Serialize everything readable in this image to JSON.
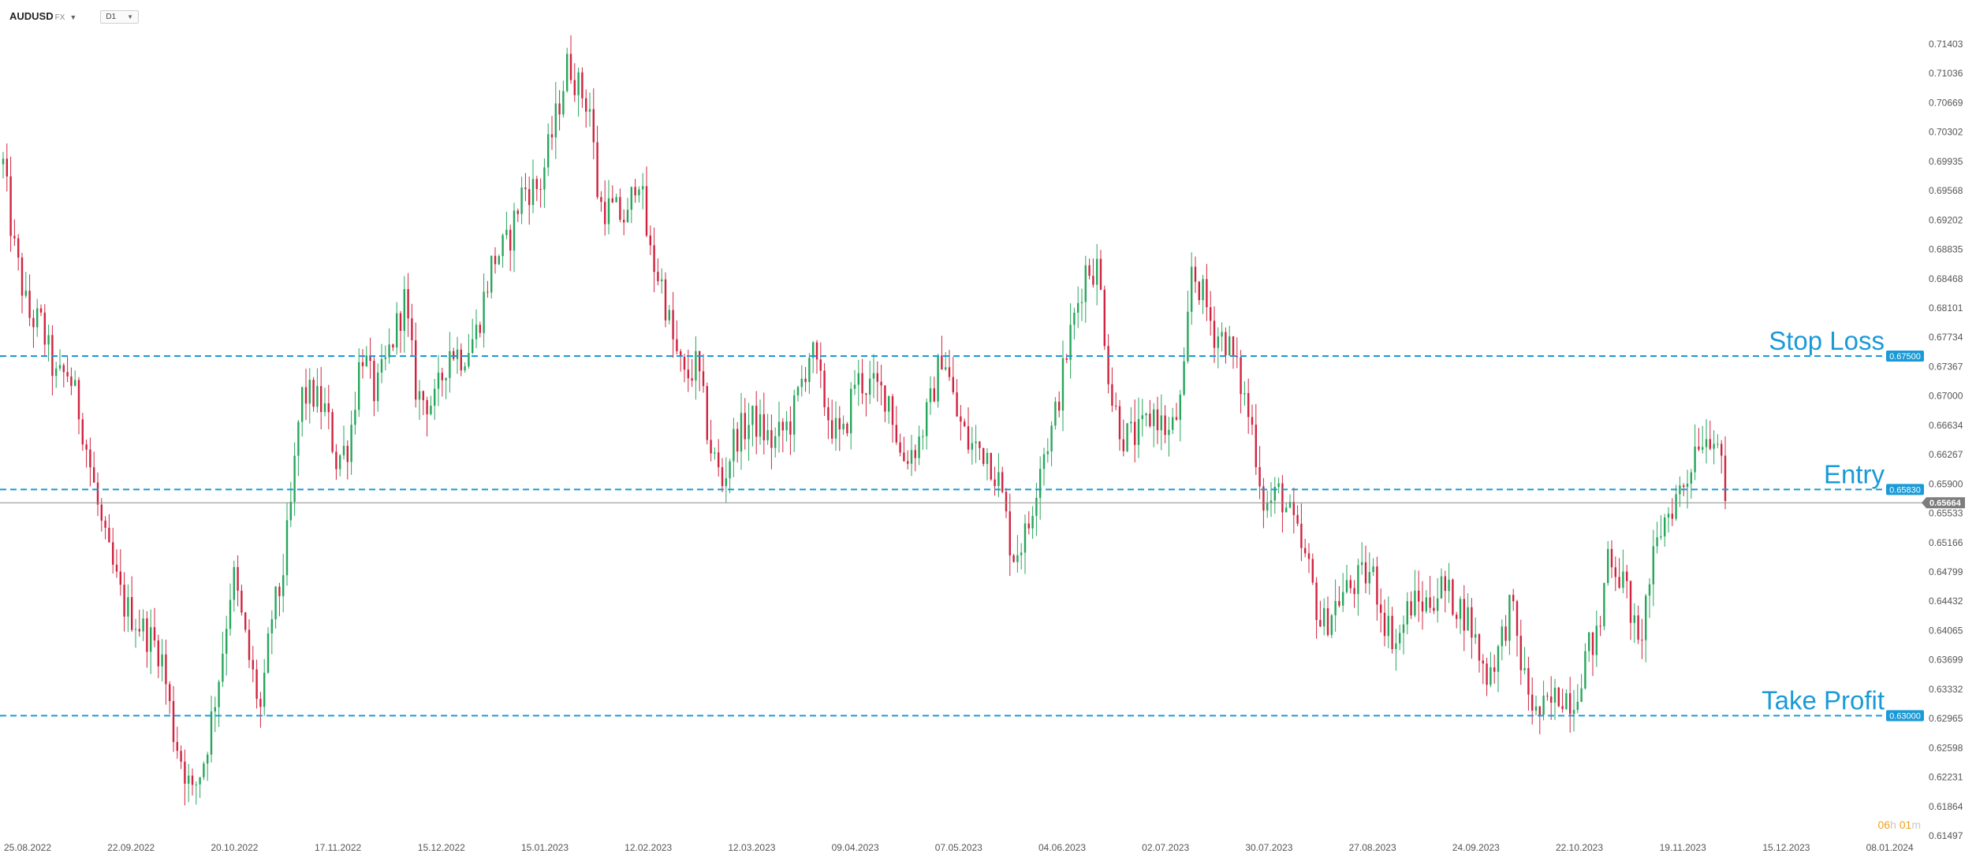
{
  "header": {
    "symbol": "AUDUSD",
    "symbol_suffix": "FX",
    "timeframe": "D1"
  },
  "countdown": {
    "hours": "06",
    "hours_unit": "h",
    "minutes": "01",
    "minutes_unit": "m"
  },
  "colors": {
    "up": "#26a65b",
    "down": "#d0233f",
    "level_line": "#1a9ad6",
    "current_price_bg": "#7d7d7d"
  },
  "chart_data": {
    "type": "candlestick",
    "title": "",
    "ylim": [
      0.615,
      0.7176
    ],
    "y_ticks": [
      "0.71403",
      "0.71036",
      "0.70669",
      "0.70302",
      "0.69935",
      "0.69568",
      "0.69202",
      "0.68835",
      "0.68468",
      "0.68101",
      "0.67734",
      "0.67367",
      "0.67000",
      "0.66634",
      "0.66267",
      "0.65900",
      "0.65533",
      "0.65166",
      "0.64799",
      "0.64432",
      "0.64065",
      "0.63699",
      "0.63332",
      "0.62965",
      "0.62598",
      "0.62231",
      "0.61864",
      "0.61497"
    ],
    "x_ticks": [
      "25.08.2022",
      "22.09.2022",
      "20.10.2022",
      "17.11.2022",
      "15.12.2022",
      "15.01.2023",
      "12.02.2023",
      "12.03.2023",
      "09.04.2023",
      "07.05.2023",
      "04.06.2023",
      "02.07.2023",
      "30.07.2023",
      "27.08.2023",
      "24.09.2023",
      "22.10.2023",
      "19.11.2023",
      "15.12.2023",
      "08.01.2024"
    ],
    "levels": [
      {
        "label": "Stop Loss",
        "price": "0.67500"
      },
      {
        "label": "Entry",
        "price": "0.65830"
      },
      {
        "label": "Take Profit",
        "price": "0.63000"
      }
    ],
    "current_price": "0.65664",
    "candles_anchors": [
      [
        0,
        0.699
      ],
      [
        8,
        0.689
      ],
      [
        20,
        0.68
      ],
      [
        30,
        0.679
      ],
      [
        42,
        0.672
      ],
      [
        52,
        0.673
      ],
      [
        62,
        0.667
      ],
      [
        80,
        0.652
      ],
      [
        95,
        0.644
      ],
      [
        110,
        0.641
      ],
      [
        125,
        0.638
      ],
      [
        135,
        0.628
      ],
      [
        150,
        0.62
      ],
      [
        160,
        0.625
      ],
      [
        172,
        0.636
      ],
      [
        182,
        0.648
      ],
      [
        195,
        0.637
      ],
      [
        205,
        0.63
      ],
      [
        212,
        0.642
      ],
      [
        220,
        0.646
      ],
      [
        228,
        0.656
      ],
      [
        236,
        0.67
      ],
      [
        246,
        0.67
      ],
      [
        256,
        0.668
      ],
      [
        264,
        0.662
      ],
      [
        274,
        0.664
      ],
      [
        284,
        0.676
      ],
      [
        295,
        0.67
      ],
      [
        305,
        0.675
      ],
      [
        318,
        0.682
      ],
      [
        328,
        0.67
      ],
      [
        342,
        0.669
      ],
      [
        354,
        0.676
      ],
      [
        364,
        0.675
      ],
      [
        375,
        0.678
      ],
      [
        388,
        0.687
      ],
      [
        400,
        0.689
      ],
      [
        412,
        0.696
      ],
      [
        425,
        0.696
      ],
      [
        437,
        0.704
      ],
      [
        448,
        0.712
      ],
      [
        455,
        0.709
      ],
      [
        465,
        0.706
      ],
      [
        472,
        0.694
      ],
      [
        485,
        0.693
      ],
      [
        495,
        0.692
      ],
      [
        503,
        0.699
      ],
      [
        512,
        0.688
      ],
      [
        522,
        0.684
      ],
      [
        532,
        0.676
      ],
      [
        540,
        0.672
      ],
      [
        550,
        0.674
      ],
      [
        560,
        0.664
      ],
      [
        570,
        0.659
      ],
      [
        580,
        0.665
      ],
      [
        595,
        0.667
      ],
      [
        610,
        0.664
      ],
      [
        625,
        0.667
      ],
      [
        640,
        0.676
      ],
      [
        655,
        0.667
      ],
      [
        665,
        0.664
      ],
      [
        675,
        0.672
      ],
      [
        690,
        0.671
      ],
      [
        702,
        0.67
      ],
      [
        712,
        0.662
      ],
      [
        725,
        0.664
      ],
      [
        735,
        0.669
      ],
      [
        745,
        0.676
      ],
      [
        755,
        0.668
      ],
      [
        765,
        0.664
      ],
      [
        780,
        0.663
      ],
      [
        790,
        0.659
      ],
      [
        800,
        0.65
      ],
      [
        812,
        0.653
      ],
      [
        822,
        0.662
      ],
      [
        832,
        0.666
      ],
      [
        845,
        0.677
      ],
      [
        858,
        0.686
      ],
      [
        868,
        0.686
      ],
      [
        878,
        0.67
      ],
      [
        888,
        0.665
      ],
      [
        900,
        0.665
      ],
      [
        912,
        0.668
      ],
      [
        925,
        0.665
      ],
      [
        935,
        0.67
      ],
      [
        942,
        0.686
      ],
      [
        950,
        0.683
      ],
      [
        960,
        0.678
      ],
      [
        970,
        0.677
      ],
      [
        980,
        0.672
      ],
      [
        990,
        0.666
      ],
      [
        1000,
        0.656
      ],
      [
        1012,
        0.658
      ],
      [
        1022,
        0.654
      ],
      [
        1035,
        0.648
      ],
      [
        1045,
        0.641
      ],
      [
        1060,
        0.645
      ],
      [
        1075,
        0.647
      ],
      [
        1085,
        0.648
      ],
      [
        1095,
        0.642
      ],
      [
        1105,
        0.639
      ],
      [
        1115,
        0.644
      ],
      [
        1128,
        0.644
      ],
      [
        1140,
        0.646
      ],
      [
        1152,
        0.644
      ],
      [
        1162,
        0.642
      ],
      [
        1175,
        0.635
      ],
      [
        1185,
        0.638
      ],
      [
        1195,
        0.644
      ],
      [
        1205,
        0.635
      ],
      [
        1215,
        0.63
      ],
      [
        1225,
        0.631
      ],
      [
        1235,
        0.633
      ],
      [
        1245,
        0.632
      ],
      [
        1255,
        0.638
      ],
      [
        1265,
        0.64
      ],
      [
        1272,
        0.651
      ],
      [
        1280,
        0.648
      ],
      [
        1288,
        0.645
      ],
      [
        1296,
        0.638
      ],
      [
        1305,
        0.647
      ],
      [
        1315,
        0.654
      ],
      [
        1325,
        0.657
      ],
      [
        1335,
        0.66
      ],
      [
        1343,
        0.665
      ],
      [
        1350,
        0.665
      ],
      [
        1358,
        0.666
      ],
      [
        1365,
        0.656
      ]
    ]
  }
}
